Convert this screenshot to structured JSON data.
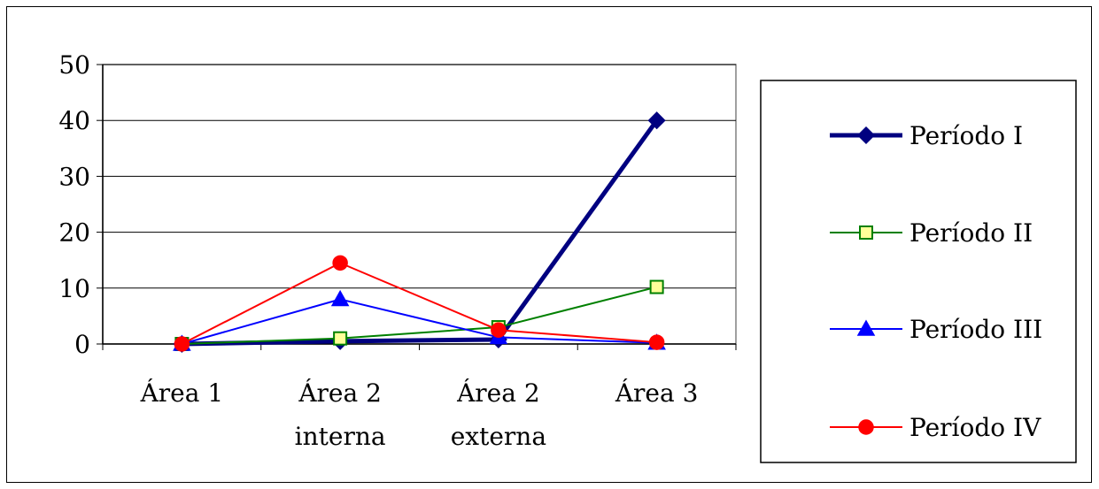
{
  "chart_data": {
    "type": "line",
    "categories": [
      [
        "Área 1"
      ],
      [
        "Área 2",
        "interna"
      ],
      [
        "Área 2",
        "externa"
      ],
      [
        "Área 3"
      ]
    ],
    "ylim": [
      0,
      50
    ],
    "yticks": [
      0,
      10,
      20,
      30,
      40,
      50
    ],
    "grid": true,
    "legend_position": "right",
    "series": [
      {
        "name": "Período I",
        "values": [
          0,
          0.5,
          0.8,
          40
        ],
        "color": "#000080",
        "marker": "diamond",
        "marker_fill": "#000080",
        "width": 5
      },
      {
        "name": "Período II",
        "values": [
          0,
          1,
          3,
          10.2
        ],
        "color": "#008000",
        "marker": "square",
        "marker_fill": "#ffff99",
        "width": 2
      },
      {
        "name": "Período III",
        "values": [
          0,
          8,
          1.2,
          0.2
        ],
        "color": "#0000ff",
        "marker": "triangle",
        "marker_fill": "#0000ff",
        "width": 2
      },
      {
        "name": "Período IV",
        "values": [
          0,
          14.5,
          2.5,
          0.3
        ],
        "color": "#ff0000",
        "marker": "circle",
        "marker_fill": "#ff0000",
        "width": 2
      }
    ]
  }
}
